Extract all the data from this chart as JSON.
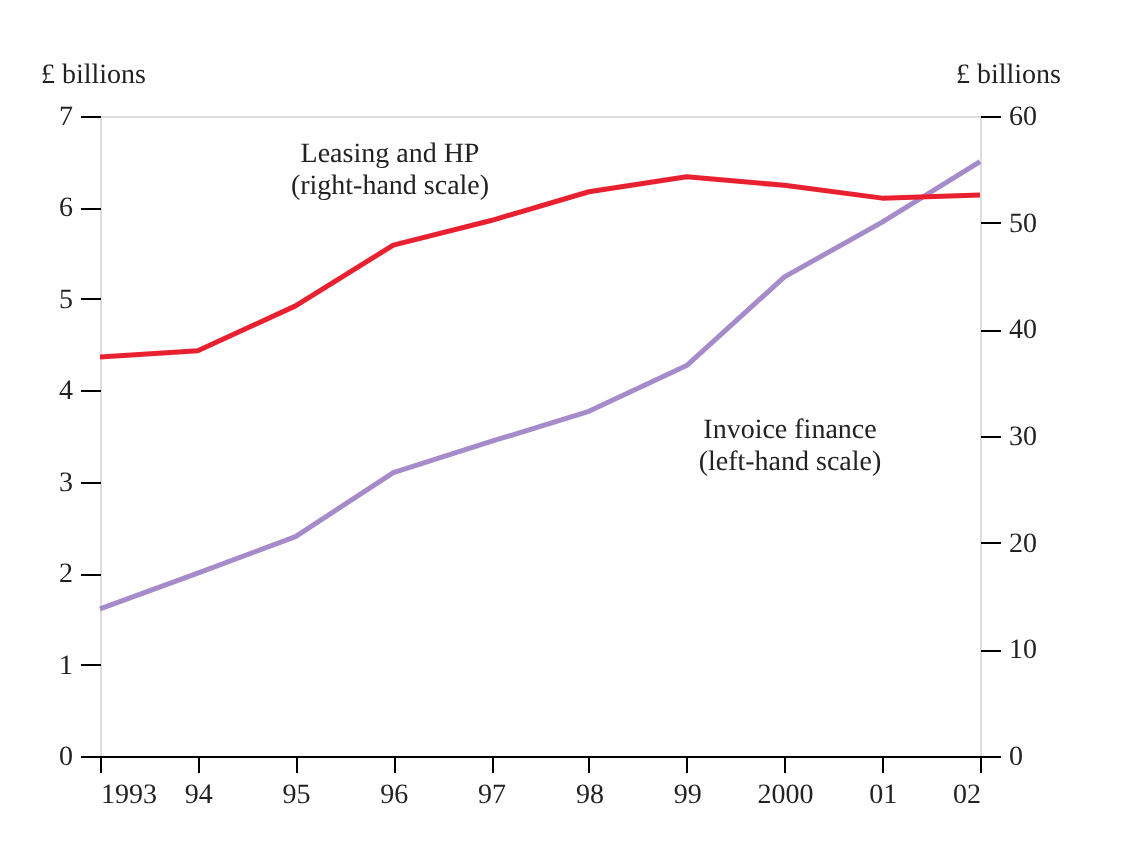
{
  "chart_data": {
    "type": "line",
    "categories": [
      "1993",
      "94",
      "95",
      "96",
      "97",
      "98",
      "99",
      "2000",
      "01",
      "02"
    ],
    "ylabel": "£ billions",
    "y2label": "£ billions",
    "ylim": [
      0,
      7
    ],
    "yticks": [
      0,
      1,
      2,
      3,
      4,
      5,
      6,
      7
    ],
    "y2lim": [
      0,
      60
    ],
    "y2ticks": [
      0,
      10,
      20,
      30,
      40,
      50,
      60
    ],
    "grid": false,
    "marker": "none",
    "line_style": "solid",
    "series": [
      {
        "name": "Leasing and HP\n(right-hand scale)",
        "color": "#e8202f",
        "axis": "y2",
        "values": [
          37.4,
          38.0,
          42.2,
          47.9,
          50.2,
          52.9,
          54.3,
          53.5,
          52.3,
          52.6
        ]
      },
      {
        "name": "Invoice finance\n(left-hand scale)",
        "color": "#a58bc9",
        "axis": "y",
        "values": [
          1.61,
          2.0,
          2.4,
          3.1,
          3.44,
          3.77,
          4.27,
          5.24,
          5.84,
          6.5
        ]
      }
    ]
  }
}
